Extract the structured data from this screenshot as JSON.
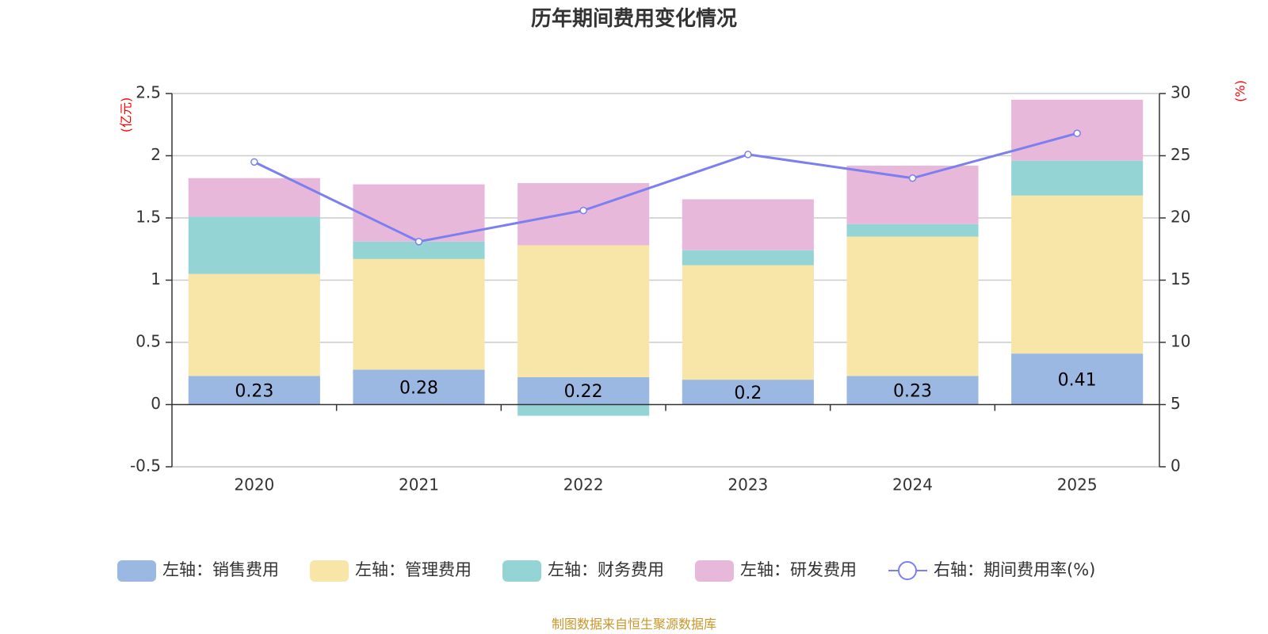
{
  "chart_data": {
    "type": "bar",
    "title": "历年期间费用变化情况",
    "categories": [
      "2020",
      "2021",
      "2022",
      "2023",
      "2024",
      "2025"
    ],
    "left_axis": {
      "unit": "(亿元)",
      "ylim": [
        -0.5,
        2.5
      ],
      "ticks": [
        "-0.5",
        "0",
        "0.5",
        "1",
        "1.5",
        "2",
        "2.5"
      ]
    },
    "right_axis": {
      "unit": "(%)",
      "ylim": [
        0,
        30
      ],
      "ticks": [
        "0",
        "5",
        "10",
        "15",
        "20",
        "25",
        "30"
      ]
    },
    "series": [
      {
        "name": "左轴：销售费用",
        "type": "bar",
        "axis": "left",
        "color": "#9bb8e2",
        "values": [
          0.23,
          0.28,
          0.22,
          0.2,
          0.23,
          0.41
        ],
        "labels": [
          "0.23",
          "0.28",
          "0.22",
          "0.2",
          "0.23",
          "0.41"
        ]
      },
      {
        "name": "左轴：管理费用",
        "type": "bar",
        "axis": "left",
        "color": "#f8e6a8",
        "values": [
          0.82,
          0.89,
          1.06,
          0.92,
          1.12,
          1.27
        ]
      },
      {
        "name": "左轴：财务费用",
        "type": "bar",
        "axis": "left",
        "color": "#95d4d4",
        "values": [
          0.46,
          0.14,
          -0.09,
          0.12,
          0.1,
          0.28
        ]
      },
      {
        "name": "左轴：研发费用",
        "type": "bar",
        "axis": "left",
        "color": "#e8b8da",
        "values": [
          0.31,
          0.46,
          0.5,
          0.41,
          0.47,
          0.49
        ]
      },
      {
        "name": "右轴：期间费用率(%)",
        "type": "line",
        "axis": "right",
        "color": "#7b7ff0",
        "values": [
          24.5,
          18.1,
          20.6,
          25.1,
          23.2,
          26.8
        ]
      }
    ],
    "grid": true,
    "legend_position": "bottom"
  },
  "footer": "制图数据来自恒生聚源数据库"
}
